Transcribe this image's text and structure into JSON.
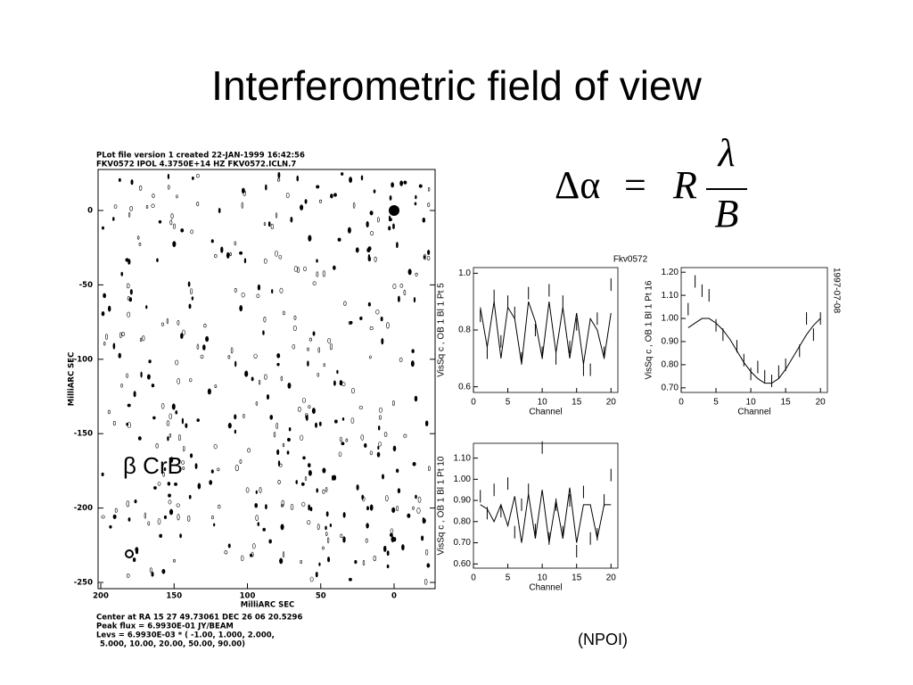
{
  "title": "Interferometric field of view",
  "formula": {
    "lhs": "Δα",
    "equals": "=",
    "factor": "R",
    "numerator": "λ",
    "denominator": "B"
  },
  "map": {
    "header": [
      "PLot file version  1  created 22-JAN-1999 16:42:56",
      "FKV0572  IPOL  4.3750E+14 HZ  FKV0572.ICLN.7"
    ],
    "x_label": "MilliARC SEC",
    "y_label": "MilliARC SEC",
    "xticks": [
      200,
      150,
      100,
      50,
      0
    ],
    "yticks": [
      0,
      -50,
      -100,
      -150,
      -200,
      -250
    ],
    "footer": [
      "Center at RA 15 27 49.73061  DEC 26 06 20.5296",
      "Peak flux = 6.9930E-01 JY/BEAM",
      "Levs = 6.9930E-03 * ( -1.00, 1.000, 2.000,",
      "5.000, 10.00, 20.00, 50.00, 90.00)"
    ],
    "annotation": "β CrB"
  },
  "vis": {
    "header": "Fkv0572",
    "date": "1997-07-08",
    "plots": [
      {
        "y_label": "VisSq c , OB 1 Bl 1 Pt 5",
        "x_label": "Channel",
        "xlim": [
          0,
          21
        ],
        "xticks": [
          0,
          5,
          10,
          15,
          20
        ],
        "ylim": [
          0.58,
          1.02
        ],
        "yticks": [
          {
            "value": 0.6,
            "label": "0.6"
          },
          {
            "value": 0.8,
            "label": "0.8"
          },
          {
            "value": 1.0,
            "label": "1.0"
          }
        ],
        "x": [
          1,
          2,
          3,
          4,
          5,
          6,
          7,
          8,
          9,
          10,
          11,
          12,
          13,
          14,
          15,
          16,
          17,
          18,
          19,
          20
        ],
        "model": [
          0.88,
          0.74,
          0.9,
          0.7,
          0.88,
          0.84,
          0.68,
          0.9,
          0.83,
          0.7,
          0.9,
          0.72,
          0.88,
          0.7,
          0.86,
          0.68,
          0.84,
          0.8,
          0.7,
          0.86
        ],
        "points": [
          0.85,
          0.72,
          0.92,
          0.76,
          0.9,
          0.86,
          0.7,
          0.93,
          0.8,
          0.72,
          0.94,
          0.7,
          0.9,
          0.74,
          0.82,
          0.66,
          0.66,
          0.84,
          0.72,
          0.96
        ]
      },
      {
        "y_label": "VisSq c , OB 1 Bl 1 Pt 16",
        "x_label": "Channel",
        "xlim": [
          0,
          21
        ],
        "xticks": [
          0,
          5,
          10,
          15,
          20
        ],
        "ylim": [
          0.68,
          1.22
        ],
        "yticks": [
          {
            "value": 0.7,
            "label": "0.70"
          },
          {
            "value": 0.8,
            "label": "0.80"
          },
          {
            "value": 0.9,
            "label": "0.90"
          },
          {
            "value": 1.0,
            "label": "1.00"
          },
          {
            "value": 1.1,
            "label": "1.10"
          },
          {
            "value": 1.2,
            "label": "1.20"
          }
        ],
        "x": [
          1,
          2,
          3,
          4,
          5,
          6,
          7,
          8,
          9,
          10,
          11,
          12,
          13,
          14,
          15,
          16,
          17,
          18,
          19,
          20
        ],
        "model": [
          0.96,
          0.98,
          1.0,
          1.0,
          0.98,
          0.95,
          0.91,
          0.86,
          0.81,
          0.77,
          0.74,
          0.72,
          0.72,
          0.74,
          0.78,
          0.83,
          0.88,
          0.93,
          0.97,
          1.0
        ],
        "points": [
          1.04,
          1.16,
          1.12,
          1.1,
          0.97,
          0.93,
          null,
          0.88,
          0.82,
          0.76,
          0.79,
          0.75,
          0.73,
          0.77,
          0.8,
          null,
          0.86,
          1.0,
          0.93,
          1.0
        ]
      },
      {
        "y_label": "VisSq c , OB 1 Bl 1 Pt 10",
        "x_label": "Channel",
        "xlim": [
          0,
          21
        ],
        "xticks": [
          0,
          5,
          10,
          15,
          20
        ],
        "ylim": [
          0.58,
          1.17
        ],
        "yticks": [
          {
            "value": 0.6,
            "label": "0.60"
          },
          {
            "value": 0.7,
            "label": "0.70"
          },
          {
            "value": 0.8,
            "label": "0.80"
          },
          {
            "value": 0.9,
            "label": "0.90"
          },
          {
            "value": 1.0,
            "label": "1.00"
          },
          {
            "value": 1.1,
            "label": "1.10"
          }
        ],
        "x": [
          1,
          2,
          3,
          4,
          5,
          6,
          7,
          8,
          9,
          10,
          11,
          12,
          13,
          14,
          15,
          16,
          17,
          18,
          19,
          20
        ],
        "model": [
          0.88,
          0.86,
          0.8,
          0.88,
          0.78,
          0.92,
          0.7,
          0.93,
          0.72,
          0.95,
          0.7,
          0.9,
          0.72,
          0.96,
          0.7,
          0.88,
          0.88,
          0.72,
          0.88,
          0.88
        ],
        "points": [
          0.92,
          0.84,
          0.95,
          0.85,
          0.98,
          0.75,
          0.88,
          0.95,
          0.76,
          1.15,
          0.72,
          0.88,
          0.75,
          0.9,
          0.66,
          0.94,
          0.72,
          0.74,
          0.9,
          1.02
        ]
      }
    ]
  },
  "credit": "(NPOI)"
}
